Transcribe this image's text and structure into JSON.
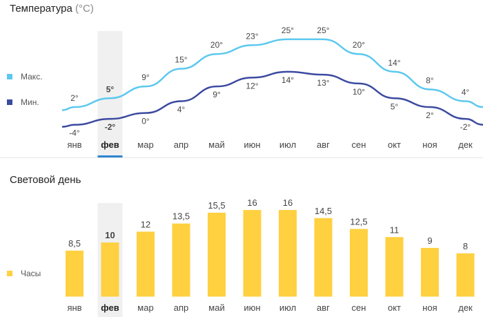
{
  "temperature": {
    "title": "Температура",
    "unit": "(°C)",
    "legend": [
      {
        "label": "Макс.",
        "color": "#5bc8ef"
      },
      {
        "label": "Мин.",
        "color": "#3b4aa0"
      }
    ]
  },
  "daylight": {
    "title": "Световой день",
    "legend": [
      {
        "label": "Часы",
        "color": "#ffd040"
      }
    ]
  },
  "highlight_color": "#f0f0f0",
  "selected_color": "#2f86d1",
  "chart_data": [
    {
      "type": "line",
      "title": "Температура (°C)",
      "categories": [
        "янв",
        "фев",
        "мар",
        "апр",
        "май",
        "июн",
        "июл",
        "авг",
        "сен",
        "окт",
        "ноя",
        "дек"
      ],
      "selected_index": 1,
      "series": [
        {
          "name": "Макс.",
          "values": [
            2,
            5,
            9,
            15,
            20,
            23,
            25,
            25,
            20,
            14,
            8,
            4
          ],
          "labels": [
            "2°",
            "5°",
            "9°",
            "15°",
            "20°",
            "23°",
            "25°",
            "25°",
            "20°",
            "14°",
            "8°",
            "4°"
          ],
          "color": "#5bc8ef"
        },
        {
          "name": "Мин.",
          "values": [
            -4,
            -2,
            0,
            4,
            9,
            12,
            14,
            13,
            10,
            5,
            2,
            -2
          ],
          "labels": [
            "-4°",
            "-2°",
            "0°",
            "4°",
            "9°",
            "12°",
            "14°",
            "13°",
            "10°",
            "5°",
            "2°",
            "-2°"
          ],
          "color": "#3b4aa0"
        }
      ]
    },
    {
      "type": "bar",
      "title": "Световой день",
      "categories": [
        "янв",
        "фев",
        "мар",
        "апр",
        "май",
        "июн",
        "июл",
        "авг",
        "сен",
        "окт",
        "ноя",
        "дек"
      ],
      "selected_index": 1,
      "series": [
        {
          "name": "Часы",
          "values": [
            8.5,
            10,
            12,
            13.5,
            15.5,
            16,
            16,
            14.5,
            12.5,
            11,
            9,
            8
          ],
          "labels": [
            "8,5",
            "10",
            "12",
            "13,5",
            "15,5",
            "16",
            "16",
            "14,5",
            "12,5",
            "11",
            "9",
            "8"
          ],
          "color": "#ffd040"
        }
      ]
    }
  ]
}
